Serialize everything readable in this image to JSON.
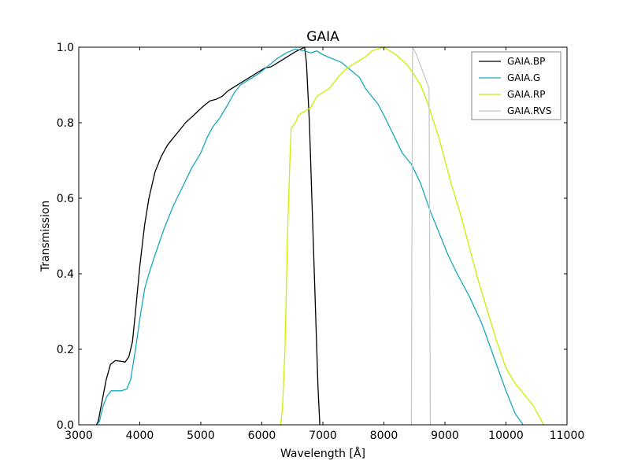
{
  "chart_data": {
    "type": "line",
    "title": "GAIA",
    "xlabel": "Wavelength [Å]",
    "ylabel": "Transmission",
    "xlim": [
      3000,
      11000
    ],
    "ylim": [
      0,
      1.0
    ],
    "xticks": [
      3000,
      4000,
      5000,
      6000,
      7000,
      8000,
      9000,
      10000,
      11000
    ],
    "xtick_labels": [
      "3000",
      "4000",
      "5000",
      "6000",
      "7000",
      "8000",
      "9000",
      "10000",
      "11000"
    ],
    "yticks": [
      0,
      0.2,
      0.4,
      0.6,
      0.8,
      1.0
    ],
    "ytick_labels": [
      "0.0",
      "0.2",
      "0.4",
      "0.6",
      "0.8",
      "1.0"
    ],
    "grid": false,
    "legend_position": "top-right",
    "series": [
      {
        "name": "GAIA.BP",
        "color": "#000000",
        "points": [
          [
            3290,
            0.0
          ],
          [
            3320,
            0.01
          ],
          [
            3380,
            0.06
          ],
          [
            3450,
            0.12
          ],
          [
            3520,
            0.16
          ],
          [
            3600,
            0.17
          ],
          [
            3700,
            0.168
          ],
          [
            3760,
            0.166
          ],
          [
            3820,
            0.18
          ],
          [
            3880,
            0.22
          ],
          [
            3930,
            0.3
          ],
          [
            4000,
            0.42
          ],
          [
            4080,
            0.53
          ],
          [
            4150,
            0.6
          ],
          [
            4250,
            0.67
          ],
          [
            4350,
            0.71
          ],
          [
            4450,
            0.74
          ],
          [
            4550,
            0.76
          ],
          [
            4650,
            0.78
          ],
          [
            4750,
            0.8
          ],
          [
            4850,
            0.815
          ],
          [
            4950,
            0.83
          ],
          [
            5050,
            0.845
          ],
          [
            5150,
            0.858
          ],
          [
            5250,
            0.862
          ],
          [
            5350,
            0.87
          ],
          [
            5450,
            0.885
          ],
          [
            5550,
            0.895
          ],
          [
            5650,
            0.905
          ],
          [
            5750,
            0.915
          ],
          [
            5850,
            0.925
          ],
          [
            5950,
            0.935
          ],
          [
            6050,
            0.945
          ],
          [
            6150,
            0.948
          ],
          [
            6250,
            0.958
          ],
          [
            6350,
            0.968
          ],
          [
            6450,
            0.978
          ],
          [
            6550,
            0.988
          ],
          [
            6650,
            0.996
          ],
          [
            6700,
            1.0
          ],
          [
            6730,
            0.96
          ],
          [
            6780,
            0.8
          ],
          [
            6830,
            0.55
          ],
          [
            6880,
            0.3
          ],
          [
            6920,
            0.1
          ],
          [
            6950,
            0.0
          ]
        ]
      },
      {
        "name": "GAIA.G",
        "color": "#17a8bd",
        "points": [
          [
            3300,
            0.0
          ],
          [
            3340,
            0.01
          ],
          [
            3400,
            0.05
          ],
          [
            3460,
            0.075
          ],
          [
            3530,
            0.09
          ],
          [
            3600,
            0.09
          ],
          [
            3700,
            0.09
          ],
          [
            3790,
            0.095
          ],
          [
            3850,
            0.12
          ],
          [
            3930,
            0.2
          ],
          [
            4000,
            0.28
          ],
          [
            4080,
            0.36
          ],
          [
            4150,
            0.4
          ],
          [
            4250,
            0.45
          ],
          [
            4400,
            0.52
          ],
          [
            4550,
            0.58
          ],
          [
            4700,
            0.63
          ],
          [
            4850,
            0.68
          ],
          [
            5000,
            0.72
          ],
          [
            5100,
            0.76
          ],
          [
            5200,
            0.79
          ],
          [
            5300,
            0.81
          ],
          [
            5450,
            0.85
          ],
          [
            5550,
            0.88
          ],
          [
            5650,
            0.9
          ],
          [
            5800,
            0.915
          ],
          [
            5950,
            0.93
          ],
          [
            6100,
            0.95
          ],
          [
            6250,
            0.97
          ],
          [
            6400,
            0.985
          ],
          [
            6550,
            0.995
          ],
          [
            6700,
            0.99
          ],
          [
            6800,
            0.985
          ],
          [
            6900,
            0.99
          ],
          [
            7000,
            0.98
          ],
          [
            7150,
            0.97
          ],
          [
            7300,
            0.96
          ],
          [
            7450,
            0.94
          ],
          [
            7600,
            0.92
          ],
          [
            7700,
            0.89
          ],
          [
            7800,
            0.87
          ],
          [
            7900,
            0.85
          ],
          [
            8000,
            0.82
          ],
          [
            8150,
            0.77
          ],
          [
            8300,
            0.72
          ],
          [
            8450,
            0.69
          ],
          [
            8600,
            0.64
          ],
          [
            8750,
            0.57
          ],
          [
            8900,
            0.51
          ],
          [
            9050,
            0.45
          ],
          [
            9200,
            0.4
          ],
          [
            9400,
            0.34
          ],
          [
            9600,
            0.27
          ],
          [
            9800,
            0.18
          ],
          [
            10000,
            0.09
          ],
          [
            10150,
            0.03
          ],
          [
            10280,
            0.0
          ]
        ]
      },
      {
        "name": "GAIA.RP",
        "color": "#ccee00",
        "points": [
          [
            6310,
            0.0
          ],
          [
            6340,
            0.05
          ],
          [
            6380,
            0.2
          ],
          [
            6420,
            0.5
          ],
          [
            6460,
            0.7
          ],
          [
            6480,
            0.785
          ],
          [
            6550,
            0.8
          ],
          [
            6600,
            0.82
          ],
          [
            6700,
            0.83
          ],
          [
            6800,
            0.84
          ],
          [
            6900,
            0.87
          ],
          [
            7000,
            0.88
          ],
          [
            7100,
            0.89
          ],
          [
            7200,
            0.91
          ],
          [
            7300,
            0.93
          ],
          [
            7400,
            0.945
          ],
          [
            7500,
            0.955
          ],
          [
            7600,
            0.965
          ],
          [
            7700,
            0.975
          ],
          [
            7800,
            0.99
          ],
          [
            7900,
            0.995
          ],
          [
            8000,
            1.0
          ],
          [
            8100,
            0.99
          ],
          [
            8200,
            0.98
          ],
          [
            8300,
            0.965
          ],
          [
            8400,
            0.95
          ],
          [
            8500,
            0.925
          ],
          [
            8600,
            0.9
          ],
          [
            8700,
            0.86
          ],
          [
            8800,
            0.81
          ],
          [
            8900,
            0.76
          ],
          [
            9000,
            0.7
          ],
          [
            9100,
            0.64
          ],
          [
            9250,
            0.56
          ],
          [
            9400,
            0.47
          ],
          [
            9550,
            0.38
          ],
          [
            9700,
            0.3
          ],
          [
            9850,
            0.22
          ],
          [
            10000,
            0.15
          ],
          [
            10150,
            0.11
          ],
          [
            10300,
            0.08
          ],
          [
            10450,
            0.05
          ],
          [
            10550,
            0.02
          ],
          [
            10620,
            0.0
          ]
        ]
      },
      {
        "name": "GAIA.RVS",
        "color": "#c8c8c8",
        "points": [
          [
            8450,
            0.0
          ],
          [
            8460,
            0.5
          ],
          [
            8470,
            1.0
          ],
          [
            8520,
            0.985
          ],
          [
            8580,
            0.96
          ],
          [
            8650,
            0.93
          ],
          [
            8720,
            0.9
          ],
          [
            8740,
            0.89
          ],
          [
            8750,
            0.5
          ],
          [
            8760,
            0.0
          ]
        ]
      }
    ]
  }
}
